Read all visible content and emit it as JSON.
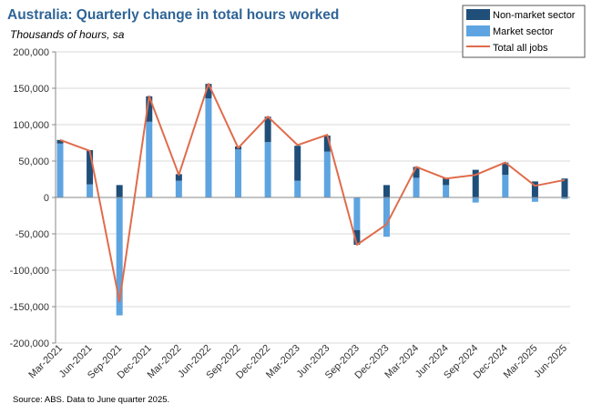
{
  "chart_data": {
    "type": "bar",
    "title": "Australia: Quarterly change in total hours worked",
    "subtitle": "Thousands of hours, sa",
    "source": "Source: ABS.  Data to June quarter 2025.",
    "ylim": [
      -200000,
      200000
    ],
    "yticks": [
      -200000,
      -150000,
      -100000,
      -50000,
      0,
      50000,
      100000,
      150000,
      200000
    ],
    "ytick_labels": [
      "-200,000",
      "-150,000",
      "-100,000",
      "-50,000",
      "0",
      "50,000",
      "100,000",
      "150,000",
      "200,000"
    ],
    "grid": true,
    "legend_position": "top-right",
    "categories": [
      "Mar-2021",
      "Jun-2021",
      "Sep-2021",
      "Dec-2021",
      "Mar-2022",
      "Jun-2022",
      "Sep-2022",
      "Dec-2022",
      "Mar-2023",
      "Jun-2023",
      "Sep-2023",
      "Dec-2023",
      "Mar-2024",
      "Jun-2024",
      "Sep-2024",
      "Dec-2024",
      "Mar-2025",
      "Jun-2025"
    ],
    "series": [
      {
        "name": "Non-market sector",
        "type": "stacked-bar",
        "color": "#1f4e79",
        "values": [
          5000,
          47000,
          17000,
          35000,
          9000,
          20000,
          4000,
          35000,
          48000,
          22000,
          -20000,
          17000,
          15000,
          10000,
          38000,
          17000,
          22000,
          26000
        ]
      },
      {
        "name": "Market sector",
        "type": "stacked-bar",
        "color": "#5ea4e0",
        "values": [
          74000,
          18000,
          -162000,
          104000,
          23000,
          136000,
          66000,
          76000,
          23000,
          63000,
          -45000,
          -54000,
          27000,
          17000,
          -7000,
          31000,
          -6000,
          -2000
        ]
      },
      {
        "name": "Total all jobs",
        "type": "line",
        "color": "#e06c4c",
        "values": [
          79000,
          64000,
          -143000,
          139000,
          31000,
          156000,
          68000,
          111000,
          72000,
          86000,
          -65000,
          -37000,
          42000,
          26000,
          31000,
          48000,
          16000,
          24000
        ]
      }
    ]
  }
}
